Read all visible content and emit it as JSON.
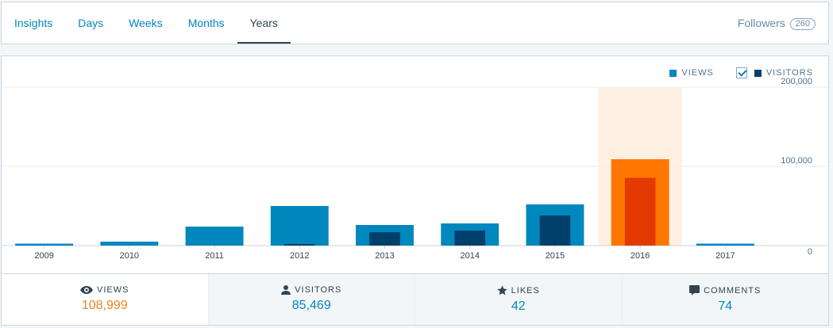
{
  "nav": {
    "tabs": [
      {
        "label": "Insights",
        "active": false
      },
      {
        "label": "Days",
        "active": false
      },
      {
        "label": "Weeks",
        "active": false
      },
      {
        "label": "Months",
        "active": false
      },
      {
        "label": "Years",
        "active": true
      }
    ],
    "followers_label": "Followers",
    "followers_count": "260"
  },
  "legend": {
    "views_label": "VIEWS",
    "visitors_label": "VISITORS",
    "visitors_checked": true
  },
  "colors": {
    "views": "#0087be",
    "visitors": "#00416c",
    "selected_views": "#ff7600",
    "selected_visitors": "#e23a00",
    "selected_highlight": "#fff0e4"
  },
  "chart_data": {
    "type": "bar",
    "categories": [
      "2009",
      "2010",
      "2011",
      "2012",
      "2013",
      "2014",
      "2015",
      "2016",
      "2017"
    ],
    "series": [
      {
        "name": "VIEWS",
        "values": [
          2500,
          5000,
          24000,
          50000,
          26000,
          28000,
          52000,
          108999,
          2500
        ]
      },
      {
        "name": "VISITORS",
        "values": [
          0,
          0,
          0,
          2000,
          17000,
          19000,
          38000,
          85469,
          0
        ]
      }
    ],
    "selected_index": 7,
    "y_ticks": [
      "200,000",
      "100,000",
      "0"
    ],
    "ylim": [
      0,
      200000
    ],
    "grid": true
  },
  "stats": [
    {
      "icon": "eye-icon",
      "label": "VIEWS",
      "value": "108,999",
      "active": true
    },
    {
      "icon": "person-icon",
      "label": "VISITORS",
      "value": "85,469",
      "active": false
    },
    {
      "icon": "star-icon",
      "label": "LIKES",
      "value": "42",
      "active": false
    },
    {
      "icon": "comment-icon",
      "label": "COMMENTS",
      "value": "74",
      "active": false
    }
  ]
}
